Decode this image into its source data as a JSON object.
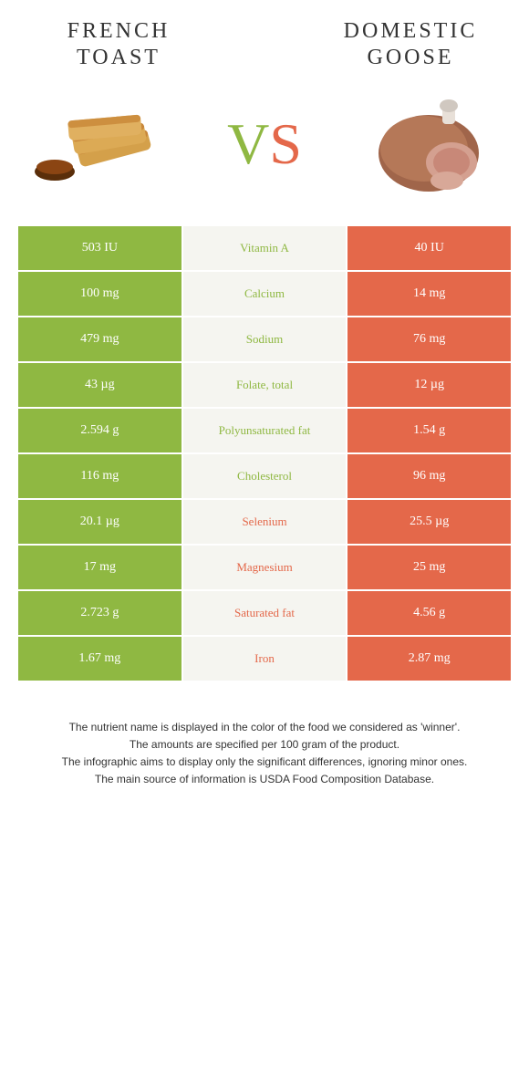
{
  "foods": {
    "left": {
      "title_line1": "FRENCH",
      "title_line2": "TOAST"
    },
    "right": {
      "title_line1": "DOMESTIC",
      "title_line2": "GOOSE"
    }
  },
  "vs": {
    "v": "V",
    "s": "S"
  },
  "colors": {
    "green": "#8fb842",
    "orange": "#e4684a",
    "mid_bg": "#f5f5f0"
  },
  "rows": [
    {
      "left": "503 IU",
      "nutrient": "Vitamin A",
      "right": "40 IU",
      "winner": "green"
    },
    {
      "left": "100 mg",
      "nutrient": "Calcium",
      "right": "14 mg",
      "winner": "green"
    },
    {
      "left": "479 mg",
      "nutrient": "Sodium",
      "right": "76 mg",
      "winner": "green"
    },
    {
      "left": "43 µg",
      "nutrient": "Folate, total",
      "right": "12 µg",
      "winner": "green"
    },
    {
      "left": "2.594 g",
      "nutrient": "Polyunsaturated fat",
      "right": "1.54 g",
      "winner": "green"
    },
    {
      "left": "116 mg",
      "nutrient": "Cholesterol",
      "right": "96 mg",
      "winner": "green"
    },
    {
      "left": "20.1 µg",
      "nutrient": "Selenium",
      "right": "25.5 µg",
      "winner": "orange"
    },
    {
      "left": "17 mg",
      "nutrient": "Magnesium",
      "right": "25 mg",
      "winner": "orange"
    },
    {
      "left": "2.723 g",
      "nutrient": "Saturated fat",
      "right": "4.56 g",
      "winner": "orange"
    },
    {
      "left": "1.67 mg",
      "nutrient": "Iron",
      "right": "2.87 mg",
      "winner": "orange"
    }
  ],
  "notes": [
    "The nutrient name is displayed in the color of the food we considered as 'winner'.",
    "The amounts are specified per 100 gram of the product.",
    "The infographic aims to display only the significant differences, ignoring minor ones.",
    "The main source of information is USDA Food Composition Database."
  ]
}
